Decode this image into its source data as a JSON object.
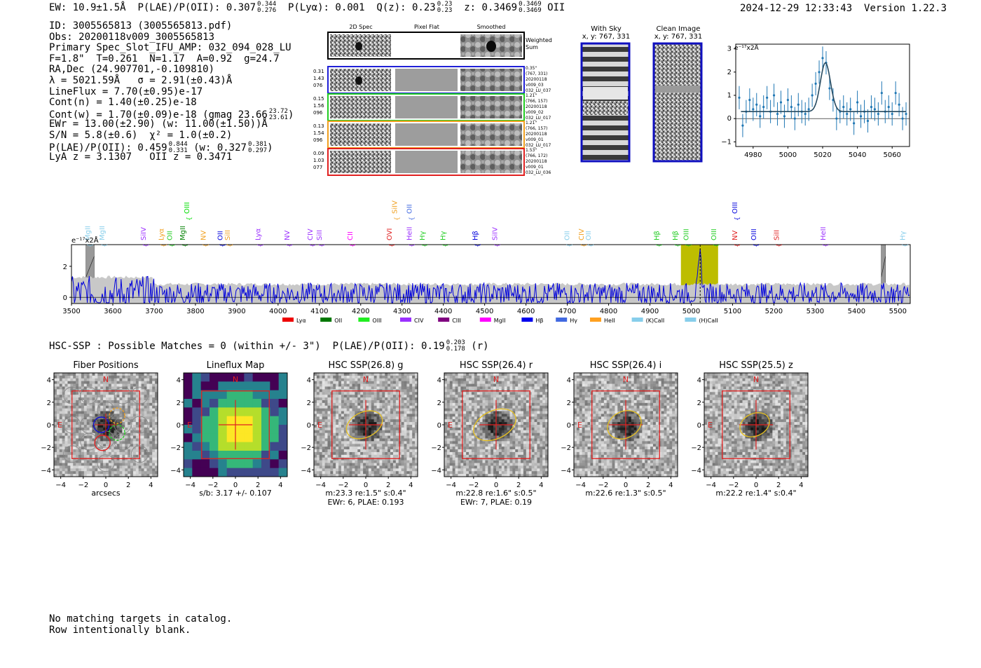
{
  "header": {
    "ew": "EW: 10.9±1.5Å",
    "plae_label": "P(LAE)/P(OII): 0.307",
    "plae_hi": "0.344",
    "plae_lo": "0.276",
    "plya": "P(Lyα): 0.001",
    "qz": "Q(z): 0.23",
    "qz_hi": "0.23",
    "qz_lo": "0.23",
    "z": "z: 0.3469",
    "z_hi": "0.3469",
    "z_lo": "0.3469",
    "z_line": "OII",
    "timestamp": "2024-12-29 12:33:43",
    "version": "Version 1.22.3"
  },
  "info": {
    "id": "ID: 3005565813 (3005565813.pdf)",
    "obs": "Obs: 20200118v009_3005565813",
    "primary": "Primary Spec_Slot_IFU_AMP: 032_094_028_LU",
    "fit": "F=1.8\"  T=0.261  N=1.17  A=0.92  g=24.7",
    "radec": "RA,Dec (24.907701,-0.109810)",
    "lambda": "λ = 5021.59Å   σ = 2.91(±0.43)Å",
    "lineflux": "LineFlux = 7.70(±0.95)e-17",
    "contn": "Cont(n) = 1.40(±0.25)e-18",
    "contw": "Cont(w) = 1.70(±0.09)e-18 (gmag 23.66",
    "contw_hi": "23.72",
    "contw_lo": "23.61",
    "contw_end": ")",
    "ewr": "EWr = 13.00(±2.90) (w: 11.00(±1.50))Å",
    "sn": "S/N = 5.8(±0.6)  χ² = 1.0(±0.2)",
    "plae": "P(LAE)/P(OII): 0.459",
    "plae_hi": "0.844",
    "plae_lo": "0.331",
    "plae_w": "(w: 0.327",
    "plae_w_hi": "0.381",
    "plae_w_lo": "0.297",
    "plae_end": ")",
    "lya": "LyA z = 3.1307   OII z = 0.3471"
  },
  "spec_panel": {
    "col_labels": [
      "2D Spec",
      "Pixel Flat",
      "Smoothed"
    ],
    "weighted_sum": [
      "Weighted",
      "Sum"
    ],
    "rows": [
      {
        "left": [
          "0.31",
          "1.43",
          "076"
        ],
        "right": [
          "0.35\"",
          "(767, 331)",
          "20200118",
          "v009_03",
          "032_LU_037"
        ],
        "color": "#1f1fd6"
      },
      {
        "left": [
          "0.15",
          "1.56",
          "096"
        ],
        "right": [
          "1.21\"",
          "(766, 157)",
          "20200118",
          "v009_02",
          "032_LU_017"
        ],
        "color": "#22cc22"
      },
      {
        "left": [
          "0.13",
          "1.54",
          "096"
        ],
        "right": [
          "1.21\"",
          "(766, 157)",
          "20200118",
          "v009_01",
          "032_LU_017"
        ],
        "color": "#f0a020"
      },
      {
        "left": [
          "0.09",
          "1.03",
          "077"
        ],
        "right": [
          "1.53\"",
          "(766, 172)",
          "20200118",
          "v009_01",
          "032_LU_036"
        ],
        "color": "#e02020"
      }
    ]
  },
  "sky_cut": {
    "title": "With Sky",
    "coords": "x, y: 767, 331"
  },
  "clean_cut": {
    "title": "Clean Image",
    "coords": "x, y: 767, 331"
  },
  "chart_data": [
    {
      "type": "scatter",
      "title": "",
      "unit_label": "e⁻¹⁷x2Å",
      "xlim": [
        4970,
        5070
      ],
      "ylim": [
        -1.2,
        3.2
      ],
      "xticks": [
        4980,
        5000,
        5020,
        5040,
        5060
      ],
      "yticks": [
        -1,
        0,
        1,
        2,
        3
      ],
      "x": [
        4972,
        4974,
        4976,
        4978,
        4980,
        4982,
        4984,
        4986,
        4988,
        4990,
        4992,
        4994,
        4996,
        4998,
        5000,
        5002,
        5004,
        5006,
        5008,
        5010,
        5012,
        5014,
        5016,
        5018,
        5020,
        5022,
        5024,
        5026,
        5028,
        5030,
        5032,
        5034,
        5036,
        5038,
        5040,
        5042,
        5044,
        5046,
        5048,
        5050,
        5052,
        5054,
        5056,
        5058,
        5060,
        5062,
        5064,
        5066,
        5068
      ],
      "y": [
        0.9,
        -0.3,
        0.3,
        0.8,
        0.4,
        0.6,
        0.1,
        0.5,
        0.9,
        0.3,
        1.0,
        0.2,
        0.7,
        0.1,
        0.8,
        0.5,
        0.0,
        0.6,
        0.3,
        0.2,
        0.4,
        1.0,
        1.5,
        2.0,
        2.6,
        2.4,
        1.3,
        0.8,
        0.0,
        0.3,
        0.5,
        0.2,
        0.4,
        -0.2,
        0.7,
        0.1,
        0.3,
        -0.1,
        0.5,
        0.4,
        0.2,
        1.1,
        0.3,
        0.5,
        0.2,
        1.1,
        0.6,
        0.0,
        0.2
      ],
      "err": [
        0.5,
        0.5,
        0.5,
        0.5,
        0.5,
        0.5,
        0.5,
        0.5,
        0.5,
        0.5,
        0.5,
        0.5,
        0.5,
        0.5,
        0.5,
        0.5,
        0.5,
        0.5,
        0.5,
        0.5,
        0.5,
        0.5,
        0.5,
        0.5,
        0.5,
        0.5,
        0.5,
        0.5,
        0.5,
        0.5,
        0.5,
        0.5,
        0.5,
        0.5,
        0.5,
        0.5,
        0.5,
        0.5,
        0.5,
        0.5,
        0.5,
        0.5,
        0.5,
        0.5,
        0.5,
        0.5,
        0.5,
        0.5,
        0.5
      ],
      "fit": {
        "baseline": 0.3,
        "amplitude": 2.1,
        "center": 5021.6,
        "sigma": 2.91
      }
    },
    {
      "type": "line",
      "unit_label": "e⁻¹⁷x2Å",
      "xlim": [
        3500,
        5530
      ],
      "ylim": [
        -0.4,
        3.4
      ],
      "xticks": [
        3500,
        3600,
        3700,
        3800,
        3900,
        4000,
        4100,
        4200,
        4300,
        4400,
        4500,
        4600,
        4700,
        4800,
        4900,
        5000,
        5100,
        5200,
        5300,
        5400,
        5500
      ],
      "yticks": [
        0,
        2
      ],
      "highlight_range": [
        4975,
        5065
      ],
      "line_center": 5021.6,
      "masked_ranges": [
        [
          3535,
          3555
        ],
        [
          5460,
          5470
        ]
      ],
      "line_marks": [
        {
          "name": "MgII",
          "wave": 3540,
          "color": "#87ceeb",
          "tier": 1
        },
        {
          "name": "MgII",
          "wave": 3575,
          "color": "#87ceeb",
          "tier": 1
        },
        {
          "name": "SiIV",
          "wave": 3675,
          "color": "#9b30ff",
          "tier": 1
        },
        {
          "name": "Lyα",
          "wave": 3718,
          "color": "#f0a020",
          "tier": 1
        },
        {
          "name": "OII",
          "wave": 3738,
          "color": "#22cc22",
          "tier": 1
        },
        {
          "name": "MgII",
          "wave": 3770,
          "color": "#008000",
          "tier": 1
        },
        {
          "name": "OIII",
          "wave": 3780,
          "color": "#00dd00",
          "tier": 0
        },
        {
          "name": "NV",
          "wave": 3820,
          "color": "#f0a020",
          "tier": 1
        },
        {
          "name": "OII",
          "wave": 3860,
          "color": "#0000dd",
          "tier": 1
        },
        {
          "name": "SiII",
          "wave": 3878,
          "color": "#f0a020",
          "tier": 1
        },
        {
          "name": "Lyα",
          "wave": 3952,
          "color": "#9b30ff",
          "tier": 1
        },
        {
          "name": "NV",
          "wave": 4022,
          "color": "#9b30ff",
          "tier": 1
        },
        {
          "name": "CIV",
          "wave": 4078,
          "color": "#9b30ff",
          "tier": 1
        },
        {
          "name": "SiII",
          "wave": 4100,
          "color": "#9b30ff",
          "tier": 1
        },
        {
          "name": "CII",
          "wave": 4175,
          "color": "#ff00ff",
          "tier": 1
        },
        {
          "name": "OVI",
          "wave": 4270,
          "color": "#e02020",
          "tier": 1
        },
        {
          "name": "SiIV",
          "wave": 4283,
          "color": "#f0a020",
          "tier": 0
        },
        {
          "name": "HeII",
          "wave": 4318,
          "color": "#9b30ff",
          "tier": 1
        },
        {
          "name": "OII",
          "wave": 4318,
          "color": "#4169e1",
          "tier": 0
        },
        {
          "name": "Hγ",
          "wave": 4350,
          "color": "#22cc22",
          "tier": 1
        },
        {
          "name": "Hγ",
          "wave": 4400,
          "color": "#22cc22",
          "tier": 1
        },
        {
          "name": "Hβ",
          "wave": 4478,
          "color": "#0000dd",
          "tier": 1
        },
        {
          "name": "SiIV",
          "wave": 4525,
          "color": "#9b30ff",
          "tier": 1
        },
        {
          "name": "OII",
          "wave": 4700,
          "color": "#87ceeb",
          "tier": 1
        },
        {
          "name": "CIV",
          "wave": 4735,
          "color": "#f0a020",
          "tier": 1
        },
        {
          "name": "OII",
          "wave": 4752,
          "color": "#87ceeb",
          "tier": 1
        },
        {
          "name": "Hβ",
          "wave": 4917,
          "color": "#22cc22",
          "tier": 1
        },
        {
          "name": "Hβ",
          "wave": 4962,
          "color": "#22cc22",
          "tier": 1
        },
        {
          "name": "OIII",
          "wave": 4988,
          "color": "#22cc22",
          "tier": 1
        },
        {
          "name": "OIII",
          "wave": 5055,
          "color": "#22cc22",
          "tier": 1
        },
        {
          "name": "NV",
          "wave": 5106,
          "color": "#e02020",
          "tier": 1
        },
        {
          "name": "OIII",
          "wave": 5106,
          "color": "#0000dd",
          "tier": 0
        },
        {
          "name": "OIII",
          "wave": 5152,
          "color": "#0000dd",
          "tier": 1
        },
        {
          "name": "SiII",
          "wave": 5207,
          "color": "#e02020",
          "tier": 1
        },
        {
          "name": "HeII",
          "wave": 5320,
          "color": "#9b30ff",
          "tier": 1
        },
        {
          "name": "Hγ",
          "wave": 5512,
          "color": "#87ceeb",
          "tier": 1
        }
      ],
      "legend": [
        {
          "label": "Lyα",
          "color": "#ee0000"
        },
        {
          "label": "OII",
          "color": "#007700"
        },
        {
          "label": "OIII",
          "color": "#22ee22"
        },
        {
          "label": "CIV",
          "color": "#9b30ff"
        },
        {
          "label": "CIII",
          "color": "#800080"
        },
        {
          "label": "MgII",
          "color": "#ff00ff"
        },
        {
          "label": "Hβ",
          "color": "#0000ee"
        },
        {
          "label": "Hγ",
          "color": "#4169e1"
        },
        {
          "label": "HeII",
          "color": "#ffa020"
        },
        {
          "label": "(K)CaII",
          "color": "#87ceeb"
        },
        {
          "label": "(H)CaII",
          "color": "#87ceeb"
        }
      ]
    }
  ],
  "hsc": {
    "header": "HSC-SSP : Possible Matches = 0 (within +/- 3\")  P(LAE)/P(OII): 0.19",
    "header_hi": "0.203",
    "header_lo": "0.178",
    "header_end": "(r)",
    "panels": [
      {
        "title": "Fiber Positions",
        "xlabel": "arcsecs",
        "line2": "",
        "kind": "fiber"
      },
      {
        "title": "Lineflux Map",
        "xlabel": "s/b: 3.17 +/- 0.107",
        "line2": "",
        "kind": "flux"
      },
      {
        "title": "HSC SSP(26.8) g",
        "xlabel": "m:23.3  re:1.5\"  s:0.4\"",
        "line2": "EWr: 6, PLAE: 0.193",
        "kind": "hsc"
      },
      {
        "title": "HSC SSP(26.4) r",
        "xlabel": "m:22.8  re:1.6\"  s:0.5\"",
        "line2": "EWr: 7, PLAE: 0.19",
        "kind": "hsc"
      },
      {
        "title": "HSC SSP(26.4) i",
        "xlabel": "m:22.6  re:1.3\"  s:0.5\"",
        "line2": "",
        "kind": "hsc"
      },
      {
        "title": "HSC SSP(25.5) z",
        "xlabel": "m:22.2  re:1.4\"  s:0.4\"",
        "line2": "",
        "kind": "hsc"
      }
    ],
    "ticks": [
      "−4",
      "−2",
      "0",
      "2",
      "4"
    ],
    "compass_n": "N",
    "compass_e": "E"
  },
  "footer": {
    "line1": "No matching targets in catalog.",
    "line2": "Row intentionally blank."
  }
}
